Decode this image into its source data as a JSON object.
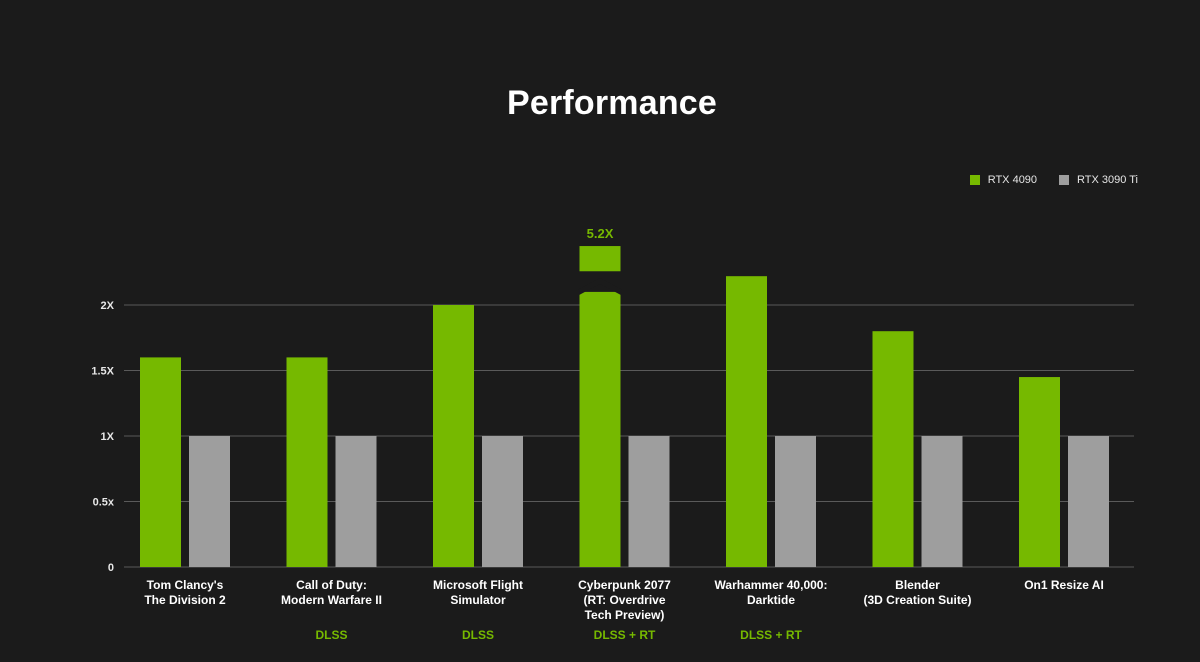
{
  "chart_data": {
    "type": "bar",
    "title": "Performance",
    "categories": [
      [
        "Tom Clancy's",
        "The Division 2"
      ],
      [
        "Call of Duty:",
        "Modern Warfare II"
      ],
      [
        "Microsoft Flight",
        "Simulator"
      ],
      [
        "Cyberpunk 2077",
        "(RT: Overdrive",
        "Tech Preview)"
      ],
      [
        "Warhammer 40,000:",
        "Darktide"
      ],
      [
        "Blender",
        "(3D Creation Suite)"
      ],
      [
        "On1 Resize AI"
      ]
    ],
    "category_notes": [
      "",
      "DLSS",
      "DLSS",
      "DLSS + RT",
      "DLSS + RT",
      "",
      ""
    ],
    "series": [
      {
        "name": "RTX 4090",
        "color": "#76b900",
        "values": [
          1.6,
          1.6,
          2.0,
          5.2,
          2.22,
          1.8,
          1.45
        ],
        "axis_break": [
          false,
          false,
          false,
          true,
          false,
          false,
          false
        ],
        "value_labels": [
          "",
          "",
          "",
          "5.2X",
          "",
          "",
          ""
        ]
      },
      {
        "name": "RTX 3090 Ti",
        "color": "#9e9e9e",
        "values": [
          1,
          1,
          1,
          1,
          1,
          1,
          1
        ]
      }
    ],
    "y_ticks": [
      0,
      0.5,
      1,
      1.5,
      2
    ],
    "y_tick_labels": [
      "0",
      "0.5x",
      "1X",
      "1.5X",
      "2X"
    ],
    "ylim": [
      0,
      2
    ],
    "break_display": {
      "below": 2.1,
      "above_top": 2.45
    },
    "grid": true,
    "legend": "top-right",
    "xlabel": "",
    "ylabel": ""
  },
  "colors": {
    "background": "#1b1b1b",
    "grid": "#5a5a5a",
    "note_text": "#76b900",
    "accent": "#76b900"
  }
}
